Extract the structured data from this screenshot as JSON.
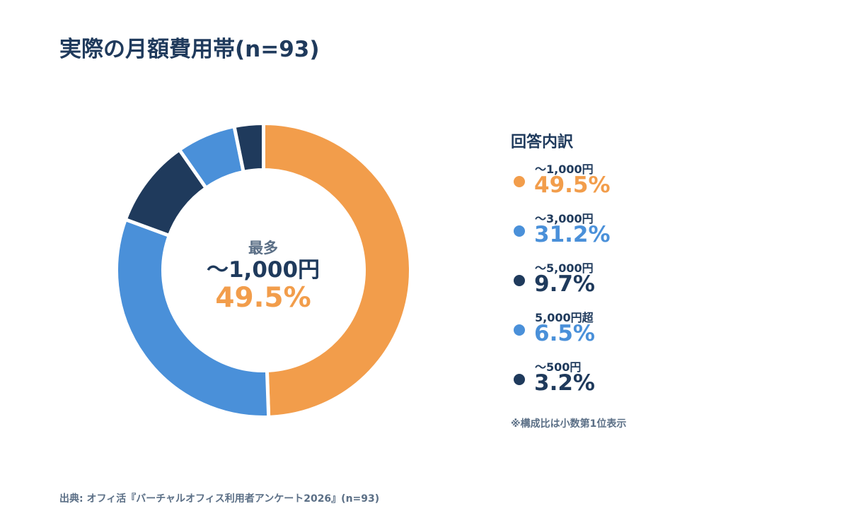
{
  "title": "実際の月額費用帯(n=93)",
  "center": {
    "label": "最多",
    "value": "〜1,000円",
    "percent": "49.5%"
  },
  "legend": {
    "title": "回答内訳",
    "items": [
      {
        "label": "〜1,000円",
        "percent": "49.5%",
        "color": "#f29d4b",
        "text_color": "#f29d4b"
      },
      {
        "label": "〜3,000円",
        "percent": "31.2%",
        "color": "#4a90d9",
        "text_color": "#4a90d9"
      },
      {
        "label": "〜5,000円",
        "percent": "9.7%",
        "color": "#1f3a5c",
        "text_color": "#1f3a5c"
      },
      {
        "label": "5,000円超",
        "percent": "6.5%",
        "color": "#4a90d9",
        "text_color": "#4a90d9"
      },
      {
        "label": "〜500円",
        "percent": "3.2%",
        "color": "#1f3a5c",
        "text_color": "#1f3a5c"
      }
    ]
  },
  "note": "※構成比は小数第1位表示",
  "source": "出典: オフィ活『バーチャルオフィス利用者アンケート2026』(n=93)",
  "chart_data": {
    "type": "pie",
    "title": "実際の月額費用帯(n=93)",
    "categories": [
      "〜1,000円",
      "〜3,000円",
      "〜5,000円",
      "5,000円超",
      "〜500円"
    ],
    "values": [
      49.5,
      31.2,
      9.7,
      6.5,
      3.2
    ],
    "colors": [
      "#f29d4b",
      "#4a90d9",
      "#1f3a5c",
      "#4a90d9",
      "#1f3a5c"
    ],
    "unit": "%",
    "n": 93,
    "legend_position": "right"
  }
}
